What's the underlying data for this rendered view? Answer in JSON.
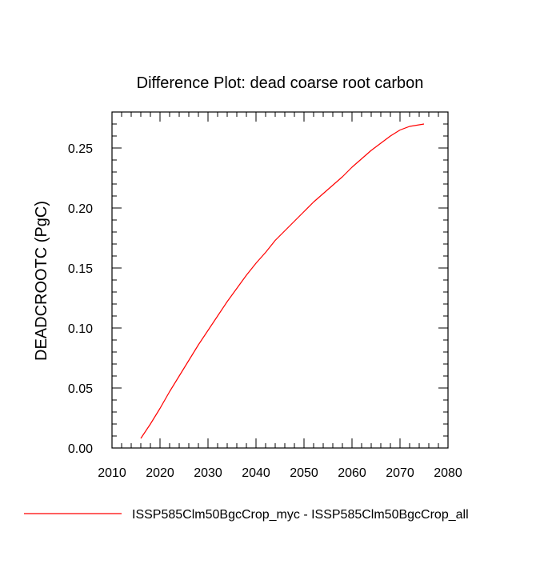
{
  "chart_data": {
    "type": "line",
    "title": "Difference Plot: dead coarse root carbon",
    "xlabel": "",
    "ylabel": "DEADCROOTC  (PgC)",
    "xlim": [
      2010,
      2080
    ],
    "ylim": [
      0.0,
      0.28
    ],
    "xticks": [
      2010,
      2020,
      2030,
      2040,
      2050,
      2060,
      2070,
      2080
    ],
    "xtick_labels": [
      "2010",
      "2020",
      "2030",
      "2040",
      "2050",
      "2060",
      "2070",
      "2080"
    ],
    "yticks": [
      0.0,
      0.05,
      0.1,
      0.15,
      0.2,
      0.25
    ],
    "ytick_labels": [
      "0.00",
      "0.05",
      "0.10",
      "0.15",
      "0.20",
      "0.25"
    ],
    "grid": false,
    "legend_position": "bottom",
    "series": [
      {
        "name": "ISSP585Clm50BgcCrop_myc - ISSP585Clm50BgcCrop_all",
        "color": "#ff0000",
        "x": [
          2016,
          2018,
          2020,
          2022,
          2024,
          2026,
          2028,
          2030,
          2032,
          2034,
          2036,
          2038,
          2040,
          2042,
          2044,
          2046,
          2048,
          2050,
          2052,
          2054,
          2056,
          2058,
          2060,
          2062,
          2064,
          2066,
          2068,
          2070,
          2072,
          2075
        ],
        "y": [
          0.008,
          0.02,
          0.033,
          0.047,
          0.06,
          0.073,
          0.086,
          0.098,
          0.11,
          0.122,
          0.133,
          0.144,
          0.154,
          0.163,
          0.173,
          0.181,
          0.189,
          0.197,
          0.205,
          0.212,
          0.219,
          0.226,
          0.234,
          0.241,
          0.248,
          0.254,
          0.26,
          0.265,
          0.268,
          0.27
        ]
      }
    ]
  }
}
